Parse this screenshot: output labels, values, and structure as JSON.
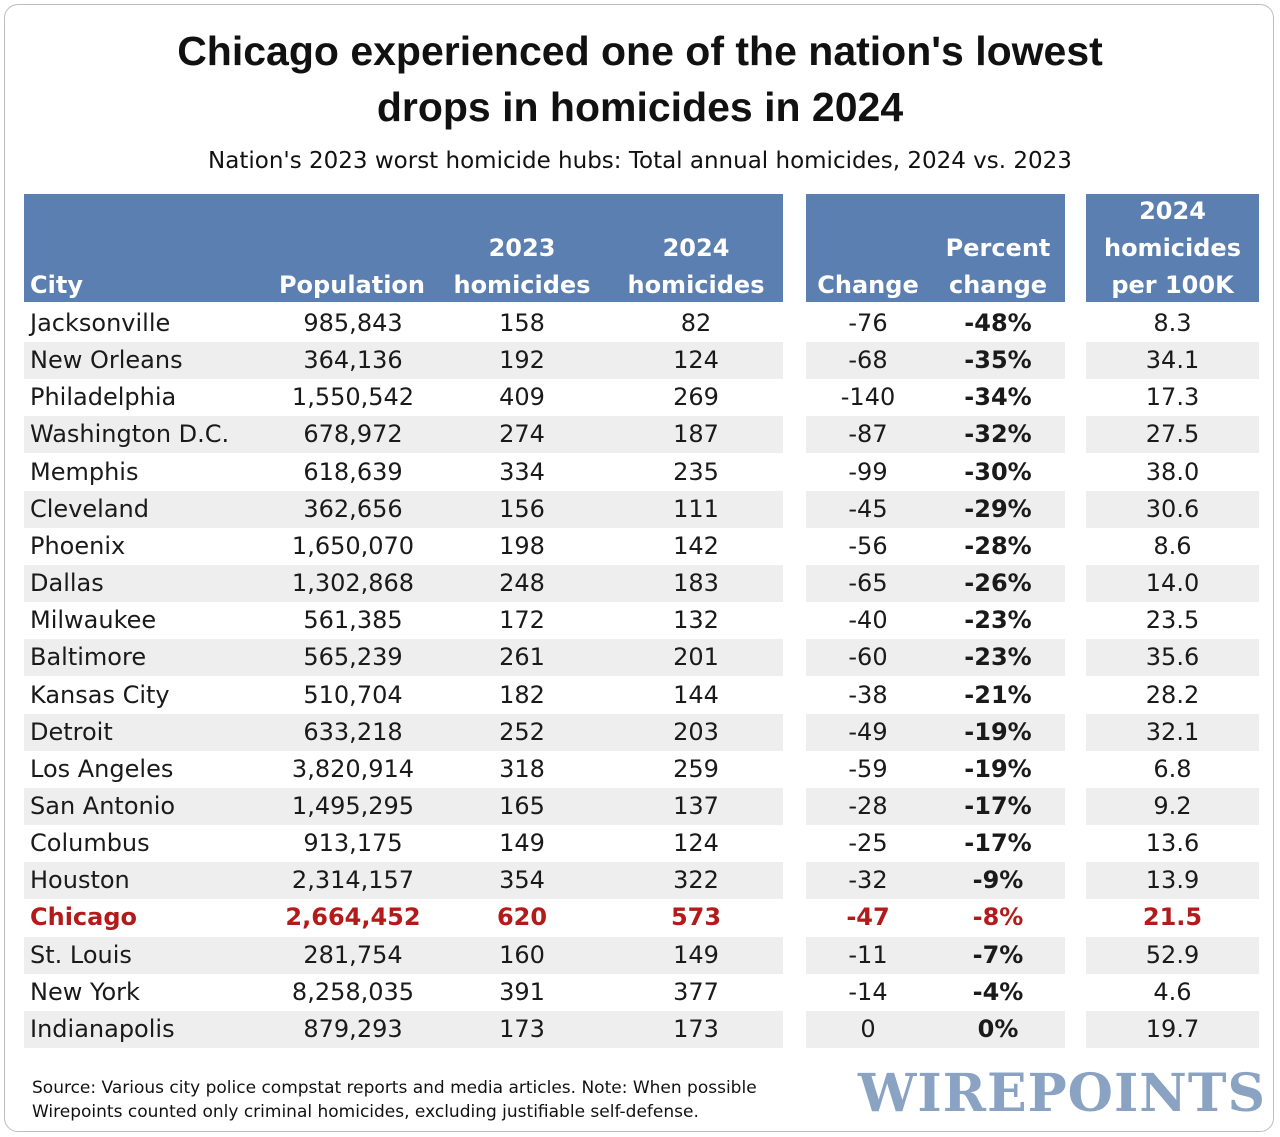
{
  "title_line1": "Chicago experienced one of the nation's lowest",
  "title_line2": "drops in homicides in 2024",
  "subtitle": "Nation's 2023 worst homicide hubs: Total annual homicides, 2024 vs. 2023",
  "headers": {
    "city": "City",
    "population": "Population",
    "h2023_1": "2023",
    "h2023_2": "homicides",
    "h2024_1": "2024",
    "h2024_2": "homicides",
    "change": "Change",
    "pct_1": "Percent",
    "pct_2": "change",
    "per100k_1": "2024",
    "per100k_2": "homicides",
    "per100k_3": "per 100K"
  },
  "colors": {
    "header_bg": "#5b7fb0",
    "stripe": "#eeeeee",
    "highlight": "#b31b1b",
    "logo": "#8aa3c3"
  },
  "chart_data": {
    "type": "table",
    "title": "Chicago experienced one of the nation's lowest drops in homicides in 2024",
    "subtitle": "Nation's 2023 worst homicide hubs: Total annual homicides, 2024 vs. 2023",
    "columns": [
      "City",
      "Population",
      "2023 homicides",
      "2024 homicides",
      "Change",
      "Percent change",
      "2024 homicides per 100K"
    ],
    "rows": [
      [
        "Jacksonville",
        "985,843",
        "158",
        "82",
        "-76",
        "-48%",
        "8.3"
      ],
      [
        "New Orleans",
        "364,136",
        "192",
        "124",
        "-68",
        "-35%",
        "34.1"
      ],
      [
        "Philadelphia",
        "1,550,542",
        "409",
        "269",
        "-140",
        "-34%",
        "17.3"
      ],
      [
        "Washington D.C.",
        "678,972",
        "274",
        "187",
        "-87",
        "-32%",
        "27.5"
      ],
      [
        "Memphis",
        "618,639",
        "334",
        "235",
        "-99",
        "-30%",
        "38.0"
      ],
      [
        "Cleveland",
        "362,656",
        "156",
        "111",
        "-45",
        "-29%",
        "30.6"
      ],
      [
        "Phoenix",
        "1,650,070",
        "198",
        "142",
        "-56",
        "-28%",
        "8.6"
      ],
      [
        "Dallas",
        "1,302,868",
        "248",
        "183",
        "-65",
        "-26%",
        "14.0"
      ],
      [
        "Milwaukee",
        "561,385",
        "172",
        "132",
        "-40",
        "-23%",
        "23.5"
      ],
      [
        "Baltimore",
        "565,239",
        "261",
        "201",
        "-60",
        "-23%",
        "35.6"
      ],
      [
        "Kansas City",
        "510,704",
        "182",
        "144",
        "-38",
        "-21%",
        "28.2"
      ],
      [
        "Detroit",
        "633,218",
        "252",
        "203",
        "-49",
        "-19%",
        "32.1"
      ],
      [
        "Los Angeles",
        "3,820,914",
        "318",
        "259",
        "-59",
        "-19%",
        "6.8"
      ],
      [
        "San Antonio",
        "1,495,295",
        "165",
        "137",
        "-28",
        "-17%",
        "9.2"
      ],
      [
        "Columbus",
        "913,175",
        "149",
        "124",
        "-25",
        "-17%",
        "13.6"
      ],
      [
        "Houston",
        "2,314,157",
        "354",
        "322",
        "-32",
        "-9%",
        "13.9"
      ],
      [
        "Chicago",
        "2,664,452",
        "620",
        "573",
        "-47",
        "-8%",
        "21.5"
      ],
      [
        "St. Louis",
        "281,754",
        "160",
        "149",
        "-11",
        "-7%",
        "52.9"
      ],
      [
        "New York",
        "8,258,035",
        "391",
        "377",
        "-14",
        "-4%",
        "4.6"
      ],
      [
        "Indianapolis",
        "879,293",
        "173",
        "173",
        "0",
        "0%",
        "19.7"
      ]
    ],
    "highlight_row": "Chicago"
  },
  "source_line1": "Source: Various city police compstat reports and media articles. Note: When possible",
  "source_line2": "Wirepoints counted only criminal homicides, excluding justifiable self-defense.",
  "logo_text": "WIREPOINTS"
}
